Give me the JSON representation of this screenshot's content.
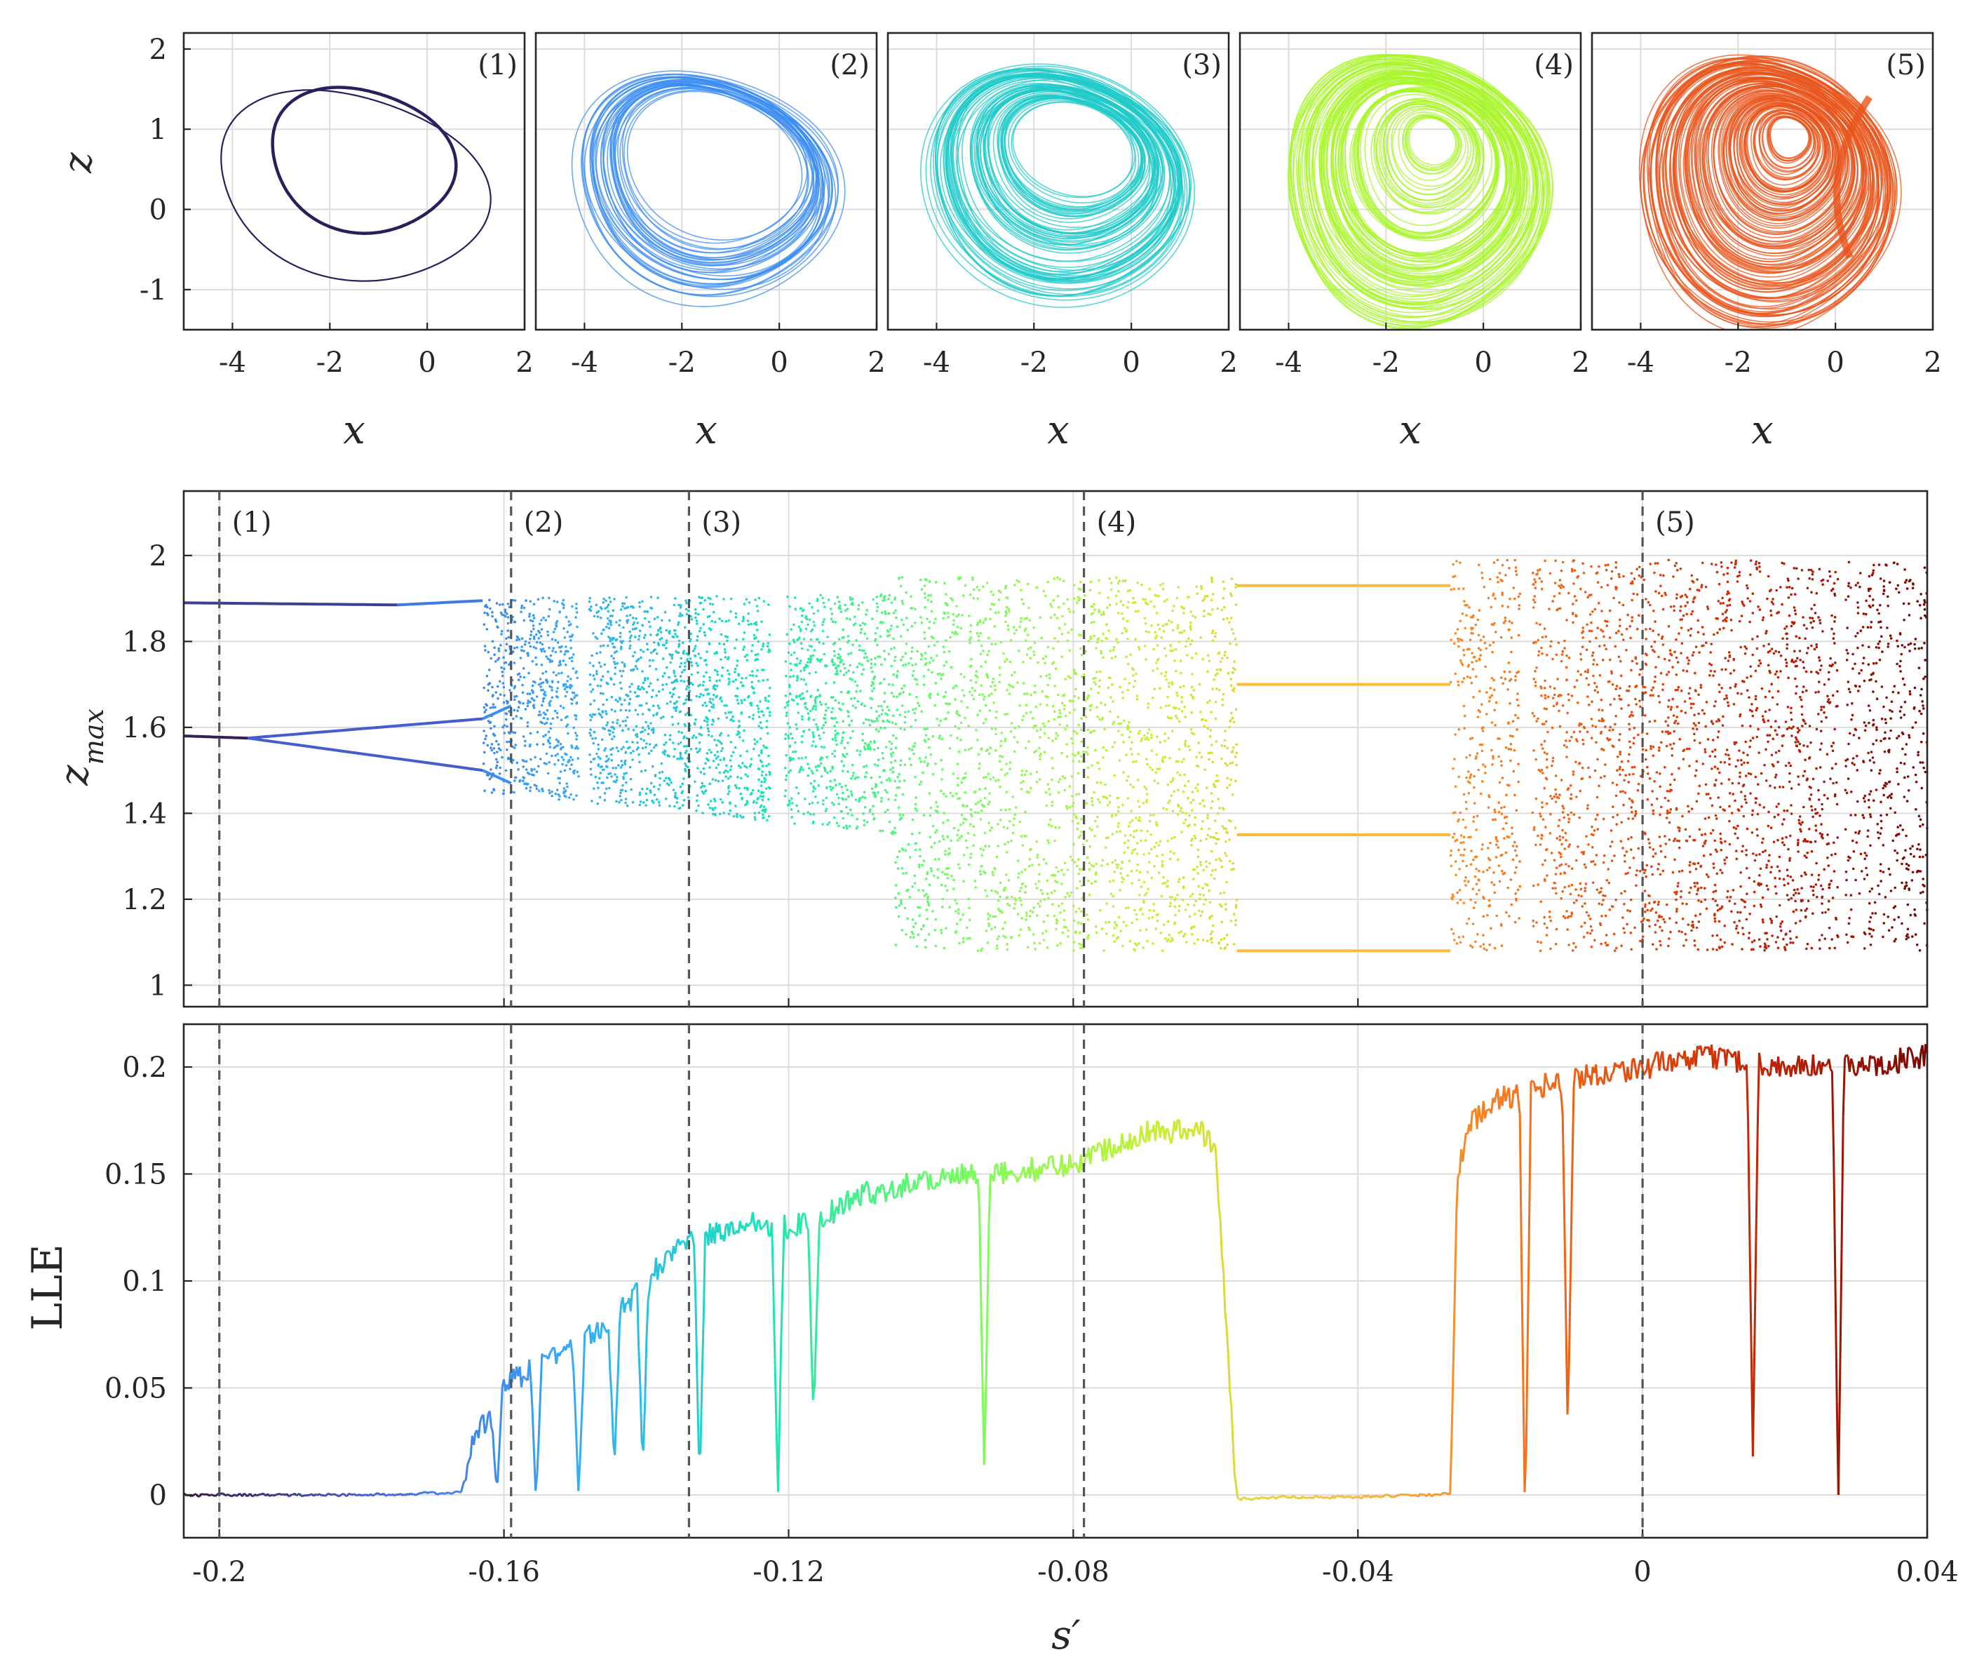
{
  "chart_data": [
    {
      "panel": "phase-portraits",
      "type": "scatter",
      "xlabel": "x",
      "ylabel": "z",
      "xlim": [
        -5,
        2
      ],
      "ylim": [
        -1.5,
        2.2
      ],
      "xticks": [
        "-4",
        "-2",
        "0",
        "2"
      ],
      "yticks": [
        "-1",
        "0",
        "1",
        "2"
      ],
      "grid": true,
      "subplots": [
        {
          "label": "(1)",
          "color": "#2a1e5c",
          "state": "periodic (2 loops)",
          "loops": [
            {
              "cx": -1.55,
              "cy": 0.3,
              "rx": 2.9,
              "ry": 1.2,
              "tilt": -0.32
            },
            {
              "cx": -1.35,
              "cy": 0.62,
              "rx": 1.95,
              "ry": 0.92,
              "tilt": -0.28
            }
          ]
        },
        {
          "label": "(2)",
          "color": "#3b8cf0",
          "state": "chaotic band"
        },
        {
          "label": "(3)",
          "color": "#1fc9c9",
          "state": "chaotic band"
        },
        {
          "label": "(4)",
          "color": "#a8f52a",
          "state": "chaotic attractor"
        },
        {
          "label": "(5)",
          "color": "#e8541b",
          "state": "chaotic attractor"
        }
      ]
    },
    {
      "panel": "bifurcation-diagram",
      "type": "scatter",
      "xlabel": "s'",
      "ylabel": "z_max",
      "xlim": [
        -0.205,
        0.04
      ],
      "ylim": [
        0.95,
        2.15
      ],
      "yticks": [
        "1",
        "1.2",
        "1.4",
        "1.6",
        "1.8",
        "2"
      ],
      "grid": true,
      "markers": [
        {
          "label": "(1)",
          "s": -0.2
        },
        {
          "label": "(2)",
          "s": -0.159
        },
        {
          "label": "(3)",
          "s": -0.134
        },
        {
          "label": "(4)",
          "s": -0.0785
        },
        {
          "label": "(5)",
          "s": 0.0
        }
      ],
      "periodic_branches_start": {
        "s": -0.205,
        "values": [
          1.89,
          1.58
        ]
      },
      "chaos_onset_s": -0.163,
      "period3_window": {
        "from": -0.057,
        "to": -0.027,
        "values": [
          1.93,
          1.7,
          1.35,
          1.08
        ]
      },
      "chaotic_range_max": 1.99
    },
    {
      "panel": "largest-lyapunov-exponent",
      "type": "line",
      "xlabel": "s'",
      "ylabel": "LLE",
      "xlim": [
        -0.205,
        0.04
      ],
      "ylim": [
        -0.02,
        0.22
      ],
      "xticks": [
        "-0.2",
        "-0.16",
        "-0.12",
        "-0.08",
        "-0.04",
        "0",
        "0.04"
      ],
      "yticks": [
        "0",
        "0.05",
        "0.1",
        "0.15",
        "0.2"
      ],
      "grid": true,
      "x": [
        -0.205,
        -0.18,
        -0.166,
        -0.164,
        -0.162,
        -0.16,
        -0.155,
        -0.15,
        -0.145,
        -0.14,
        -0.135,
        -0.13,
        -0.125,
        -0.12,
        -0.115,
        -0.11,
        -0.1,
        -0.09,
        -0.08,
        -0.07,
        -0.062,
        -0.06,
        -0.058,
        -0.057,
        -0.05,
        -0.04,
        -0.03,
        -0.027,
        -0.026,
        -0.024,
        -0.02,
        -0.015,
        -0.01,
        0.0,
        0.01,
        0.02,
        0.03,
        0.04
      ],
      "y": [
        0.0,
        0.0,
        0.001,
        0.03,
        0.035,
        0.05,
        0.062,
        0.07,
        0.08,
        0.1,
        0.12,
        0.122,
        0.128,
        0.125,
        0.13,
        0.14,
        0.148,
        0.15,
        0.155,
        0.17,
        0.17,
        0.162,
        0.05,
        -0.002,
        -0.001,
        -0.001,
        0.0,
        0.001,
        0.15,
        0.175,
        0.185,
        0.19,
        0.195,
        0.2,
        0.205,
        0.2,
        0.2,
        0.205
      ],
      "dips": [
        {
          "s": -0.161,
          "to": 0.0
        },
        {
          "s": -0.1555,
          "to": -0.002
        },
        {
          "s": -0.1495,
          "to": -0.002
        },
        {
          "s": -0.1445,
          "to": 0.011
        },
        {
          "s": -0.1405,
          "to": 0.011
        },
        {
          "s": -0.1325,
          "to": 0.003
        },
        {
          "s": -0.1215,
          "to": -0.002
        },
        {
          "s": -0.1165,
          "to": 0.035
        },
        {
          "s": -0.0925,
          "to": 0.01
        },
        {
          "s": -0.0165,
          "to": -0.018
        },
        {
          "s": -0.0105,
          "to": 0.025
        },
        {
          "s": 0.0155,
          "to": 0.018
        },
        {
          "s": 0.0275,
          "to": -0.007
        }
      ],
      "colormap": [
        "#30123b",
        "#4662d7",
        "#36aaf9",
        "#1ae4b6",
        "#72fe5e",
        "#c8ef34",
        "#faba39",
        "#f66b19",
        "#cb2a04",
        "#7a0403"
      ]
    }
  ],
  "axis_text": {
    "phase_xlabel": "x",
    "phase_ylabel": "z",
    "bif_ylabel": "z",
    "bif_ylabel_sub": "max",
    "lle_ylabel": "LLE",
    "s_xlabel": "s′"
  }
}
